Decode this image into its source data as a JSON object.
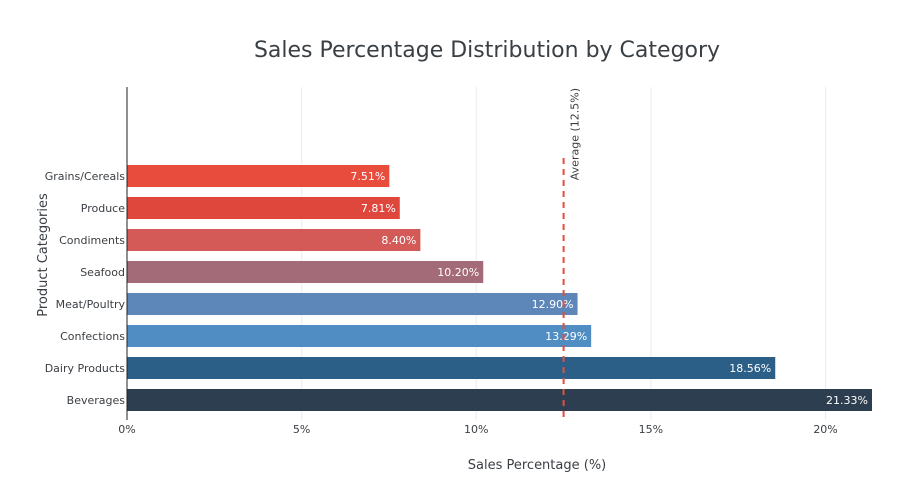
{
  "chart_data": {
    "type": "bar",
    "orientation": "horizontal",
    "title": "Sales Percentage Distribution by Category",
    "xlabel": "Sales Percentage (%)",
    "ylabel": "Product Categories",
    "xlim": [
      0,
      21.33
    ],
    "x_ticks": [
      "0%",
      "5%",
      "10%",
      "15%",
      "20%"
    ],
    "x_tick_values": [
      0,
      5,
      10,
      15,
      20
    ],
    "grid": true,
    "categories": [
      "Grains/Cereals",
      "Produce",
      "Condiments",
      "Seafood",
      "Meat/Poultry",
      "Confections",
      "Dairy Products",
      "Beverages"
    ],
    "values": [
      7.51,
      7.81,
      8.4,
      10.2,
      12.9,
      13.29,
      18.56,
      21.33
    ],
    "data_labels": [
      "7.51%",
      "7.81%",
      "8.40%",
      "10.20%",
      "12.90%",
      "13.29%",
      "18.56%",
      "21.33%"
    ],
    "colors": [
      "#e74c3c",
      "#e0473c",
      "#d35a56",
      "#a36b77",
      "#5d87b9",
      "#4f8dc2",
      "#2c5f87",
      "#2c3e50"
    ],
    "reference_line": {
      "value": 12.5,
      "label": "Average (12.5%)",
      "color": "#e74c3c"
    }
  }
}
